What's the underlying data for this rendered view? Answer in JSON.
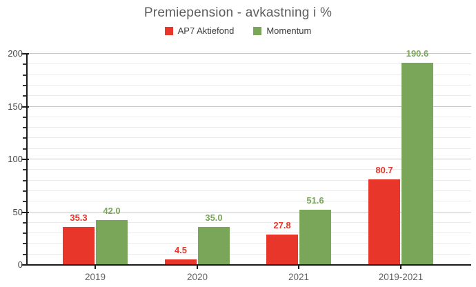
{
  "chart_data": {
    "type": "bar",
    "title": "Premiepension - avkastning i %",
    "categories": [
      "2019",
      "2020",
      "2021",
      "2019-2021"
    ],
    "series": [
      {
        "name": "AP7 Aktiefond",
        "color": "#e8362a",
        "values": [
          35.3,
          4.5,
          27.8,
          80.7
        ]
      },
      {
        "name": "Momentum",
        "color": "#7aa65a",
        "values": [
          42.0,
          35.0,
          51.6,
          190.6
        ]
      }
    ],
    "value_labels": {
      "AP7 Aktiefond": [
        "35.3",
        "4.5",
        "27.8",
        "80.7"
      ],
      "Momentum": [
        "42.0",
        "35.0",
        "51.6",
        "190.6"
      ]
    },
    "xlabel": "",
    "ylabel": "",
    "ylim": [
      0,
      200
    ],
    "yticks": [
      0,
      50,
      100,
      150,
      200
    ],
    "minor_grid_step": 10,
    "grid": "on",
    "legend_position": "top",
    "background_color": "#ffffff"
  }
}
